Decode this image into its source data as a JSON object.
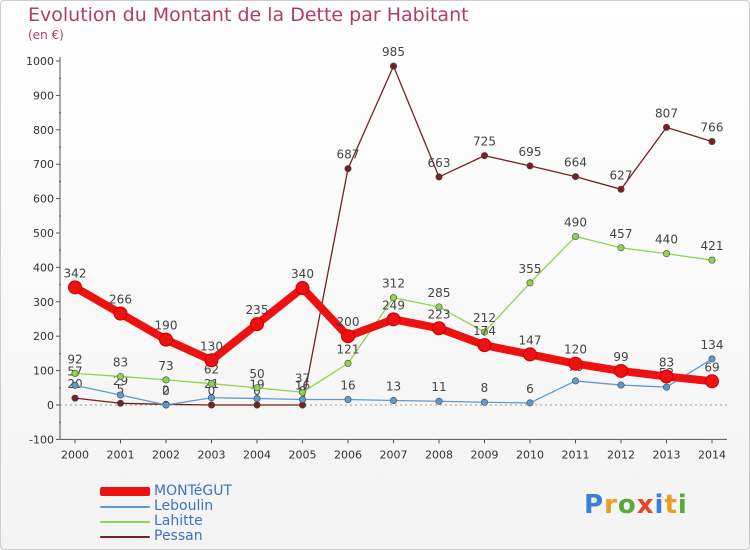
{
  "title": "Evolution du Montant de la Dette par Habitant",
  "subtitle": "(en €)",
  "logo": {
    "letters": [
      "P",
      "r",
      "o",
      "x",
      "i",
      "t",
      "i"
    ],
    "colors": [
      "#3a7fd5",
      "#e8a020",
      "#58a83a",
      "#e8432a",
      "#3a7fd5",
      "#e8a020",
      "#58a83a"
    ]
  },
  "chart_data": {
    "type": "line",
    "x": [
      2000,
      2001,
      2002,
      2003,
      2004,
      2005,
      2006,
      2007,
      2008,
      2009,
      2010,
      2011,
      2012,
      2013,
      2014
    ],
    "ylim": [
      -100,
      1000
    ],
    "yticks": [
      -100,
      0,
      100,
      200,
      300,
      400,
      500,
      600,
      700,
      800,
      900,
      1000
    ],
    "grid": false,
    "legend_position": "bottom-left",
    "series": [
      {
        "name": "Pessan",
        "color": "#7a1f24",
        "values": [
          20,
          5,
          2,
          0,
          0,
          0,
          687,
          985,
          663,
          725,
          695,
          664,
          627,
          807,
          766
        ],
        "labels": [
          "20",
          "5",
          "2",
          "0",
          "0",
          "0",
          "687",
          "985",
          "663",
          "725",
          "695",
          "664",
          "627",
          "807",
          "766"
        ]
      },
      {
        "name": "Leboulin",
        "color": "#5b9bd5",
        "values": [
          57,
          29,
          0,
          21,
          19,
          16,
          16,
          13,
          11,
          8,
          6,
          70,
          58,
          52,
          134
        ],
        "labels": [
          "57",
          "29",
          "0",
          "21",
          "19",
          "16",
          "16",
          "13",
          "11",
          "8",
          "6",
          "70",
          "58",
          "52",
          "134"
        ]
      },
      {
        "name": "Lahitte",
        "color": "#8ed44f",
        "values": [
          92,
          83,
          73,
          62,
          50,
          37,
          121,
          312,
          285,
          212,
          355,
          490,
          457,
          440,
          421
        ],
        "labels": [
          "92",
          "83",
          "73",
          "62",
          "50",
          "37",
          "121",
          "312",
          "285",
          "212",
          "355",
          "490",
          "457",
          "440",
          "421"
        ]
      },
      {
        "name": "MONTéGUT",
        "color": "#ee1111",
        "values": [
          342,
          266,
          190,
          130,
          235,
          340,
          200,
          249,
          223,
          174,
          147,
          120,
          99,
          83,
          69
        ],
        "labels": [
          "342",
          "266",
          "190",
          "130",
          "235",
          "340",
          "200",
          "249",
          "223",
          "174",
          "147",
          "120",
          "99",
          "83",
          "69"
        ]
      }
    ]
  }
}
